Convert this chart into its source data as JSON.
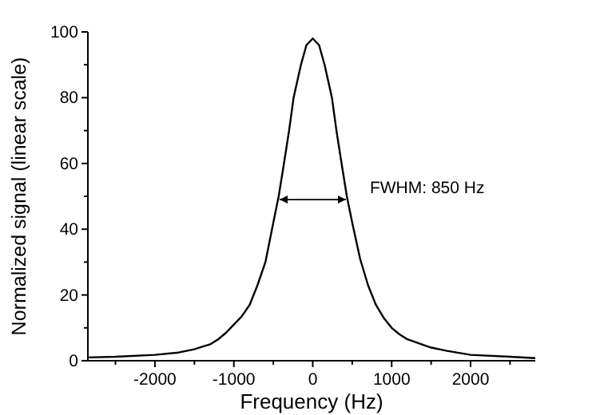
{
  "chart_data": {
    "type": "line",
    "xlabel": "Frequency  (Hz)",
    "ylabel": "Normalized signal  (linear scale)",
    "xlim": [
      -2850,
      2820
    ],
    "ylim": [
      0,
      100
    ],
    "xticks": [
      {
        "value": -2500,
        "label": null
      },
      -2000,
      {
        "value": -1500,
        "label": null
      },
      -1000,
      {
        "value": -500,
        "label": null
      },
      0,
      {
        "value": 500,
        "label": null
      },
      1000,
      {
        "value": 1500,
        "label": null
      },
      2000,
      {
        "value": 2500,
        "label": null
      }
    ],
    "yticks": [
      0,
      {
        "value": 10,
        "label": null
      },
      20,
      {
        "value": 30,
        "label": null
      },
      40,
      {
        "value": 50,
        "label": null
      },
      60,
      {
        "value": 70,
        "label": null
      },
      80,
      {
        "value": 90,
        "label": null
      },
      100
    ],
    "grid": false,
    "marker": "none",
    "line_style": "solid",
    "annotations": [
      "FWHM: 850 Hz"
    ],
    "series": [
      {
        "color": "#000000",
        "x": [
          -2850,
          -2500,
          -2000,
          -1700,
          -1500,
          -1300,
          -1200,
          -1100,
          -1000,
          -900,
          -800,
          -700,
          -600,
          -500,
          -432,
          -365,
          -300,
          -243,
          -150,
          -80,
          0,
          80,
          150,
          243,
          300,
          365,
          432,
          500,
          600,
          700,
          800,
          900,
          1000,
          1100,
          1200,
          1500,
          1700,
          2000,
          2500,
          2820
        ],
        "values": [
          1,
          1.2,
          1.8,
          2.5,
          3.5,
          5,
          6.5,
          8.5,
          11,
          13.5,
          17,
          23,
          30,
          42,
          50,
          60,
          70,
          80,
          90,
          96,
          98,
          96,
          90,
          80,
          70,
          60,
          50,
          42,
          31,
          23,
          17,
          13,
          10,
          8,
          6.5,
          4,
          3,
          1.8,
          1.2,
          0.8
        ]
      }
    ]
  }
}
